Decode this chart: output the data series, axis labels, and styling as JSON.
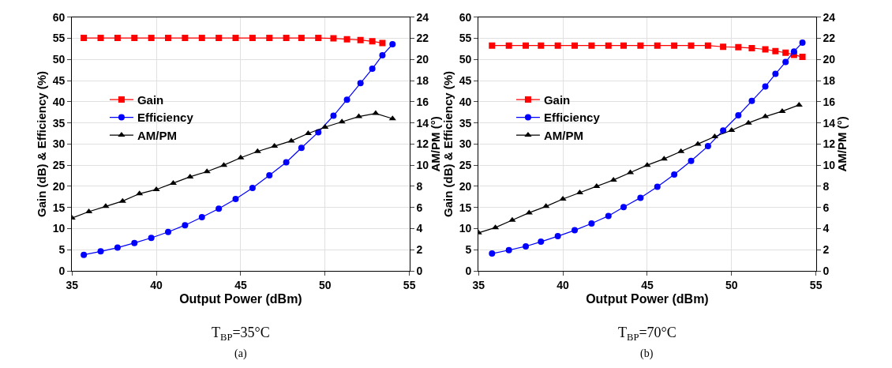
{
  "chart_data": [
    {
      "type": "line",
      "xlabel": "Output Power (dBm)",
      "ylabel": "Gain (dB) & Efficiency (%)",
      "y2label": "AM/PM (°)",
      "xlim": [
        35,
        55
      ],
      "xticks": [
        35,
        40,
        45,
        50,
        55
      ],
      "ylim": [
        0,
        60
      ],
      "yticks": [
        0,
        5,
        10,
        15,
        20,
        25,
        30,
        35,
        40,
        45,
        50,
        55,
        60
      ],
      "y2lim": [
        0,
        24
      ],
      "y2ticks": [
        0,
        2,
        4,
        6,
        8,
        10,
        12,
        14,
        16,
        18,
        20,
        22,
        24
      ],
      "grid": true,
      "legend": "left",
      "annotations": [
        "T$_{BP}$=35°C",
        "(a)"
      ],
      "series": [
        {
          "name": "Gain",
          "color": "#ff0000",
          "marker": "square",
          "x": [
            35.7,
            36.7,
            37.7,
            38.7,
            39.7,
            40.7,
            41.7,
            42.7,
            43.7,
            44.7,
            45.7,
            46.7,
            47.7,
            48.6,
            49.6,
            50.5,
            51.3,
            52.1,
            52.8,
            53.4
          ],
          "values": [
            55.1,
            55.1,
            55.1,
            55.1,
            55.1,
            55.1,
            55.1,
            55.1,
            55.1,
            55.1,
            55.1,
            55.1,
            55.1,
            55.1,
            55.1,
            55.0,
            54.8,
            54.6,
            54.3,
            53.9
          ]
        },
        {
          "name": "Efficiency",
          "color": "#0000ff",
          "marker": "circle",
          "x": [
            35.7,
            36.7,
            37.7,
            38.7,
            39.7,
            40.7,
            41.7,
            42.7,
            43.7,
            44.7,
            45.7,
            46.7,
            47.7,
            48.6,
            49.6,
            50.5,
            51.3,
            52.1,
            52.8,
            53.4,
            54.0
          ],
          "values": [
            3.8,
            4.6,
            5.5,
            6.6,
            7.8,
            9.2,
            10.8,
            12.7,
            14.7,
            17.0,
            19.6,
            22.6,
            25.7,
            29.1,
            32.8,
            36.7,
            40.5,
            44.4,
            47.8,
            51.0,
            53.6
          ]
        },
        {
          "name": "AM/PM",
          "color": "#000000",
          "marker": "triangle",
          "axis": "y2",
          "x": [
            35,
            36,
            37,
            38,
            39,
            40,
            41,
            42,
            43,
            44,
            45,
            46,
            47,
            48,
            49,
            50,
            51,
            52,
            53,
            54
          ],
          "values": [
            5.0,
            5.6,
            6.1,
            6.6,
            7.3,
            7.7,
            8.3,
            8.9,
            9.4,
            10.0,
            10.7,
            11.3,
            11.8,
            12.3,
            13.0,
            13.6,
            14.1,
            14.6,
            14.9,
            14.4
          ]
        }
      ]
    },
    {
      "type": "line",
      "xlabel": "Output Power (dBm)",
      "ylabel": "Gain (dB) & Efficiency (%)",
      "y2label": "AM/PM (°)",
      "xlim": [
        35,
        55
      ],
      "xticks": [
        35,
        40,
        45,
        50,
        55
      ],
      "ylim": [
        0,
        60
      ],
      "yticks": [
        0,
        5,
        10,
        15,
        20,
        25,
        30,
        35,
        40,
        45,
        50,
        55,
        60
      ],
      "y2lim": [
        0,
        24
      ],
      "y2ticks": [
        0,
        2,
        4,
        6,
        8,
        10,
        12,
        14,
        16,
        18,
        20,
        22,
        24
      ],
      "grid": true,
      "legend": "left",
      "annotations": [
        "T$_{BP}$=70°C",
        "(b)"
      ],
      "series": [
        {
          "name": "Gain",
          "color": "#ff0000",
          "marker": "square",
          "x": [
            35.8,
            36.8,
            37.8,
            38.7,
            39.7,
            40.7,
            41.7,
            42.7,
            43.6,
            44.6,
            45.6,
            46.6,
            47.6,
            48.6,
            49.5,
            50.4,
            51.2,
            52.0,
            52.6,
            53.2,
            53.7,
            54.2
          ],
          "values": [
            53.3,
            53.3,
            53.3,
            53.3,
            53.3,
            53.3,
            53.3,
            53.3,
            53.3,
            53.3,
            53.3,
            53.3,
            53.3,
            53.3,
            53.0,
            52.9,
            52.7,
            52.4,
            52.0,
            51.6,
            51.1,
            50.6
          ]
        },
        {
          "name": "Efficiency",
          "color": "#0000ff",
          "marker": "circle",
          "x": [
            35.8,
            36.8,
            37.8,
            38.7,
            39.7,
            40.7,
            41.7,
            42.7,
            43.6,
            44.6,
            45.6,
            46.6,
            47.6,
            48.6,
            49.5,
            50.4,
            51.2,
            52.0,
            52.6,
            53.2,
            53.7,
            54.2
          ],
          "values": [
            4.1,
            4.9,
            5.8,
            6.9,
            8.2,
            9.6,
            11.2,
            13.0,
            15.1,
            17.3,
            19.9,
            22.8,
            26.0,
            29.5,
            33.2,
            36.8,
            40.2,
            43.6,
            46.6,
            49.4,
            51.9,
            54.0
          ]
        },
        {
          "name": "AM/PM",
          "color": "#000000",
          "marker": "triangle",
          "axis": "y2",
          "x": [
            35,
            36,
            37,
            38,
            39,
            40,
            41,
            42,
            43,
            44,
            45,
            46,
            47,
            48,
            49,
            50,
            51,
            52,
            53,
            54
          ],
          "values": [
            3.6,
            4.1,
            4.8,
            5.5,
            6.1,
            6.8,
            7.4,
            8.0,
            8.6,
            9.3,
            10.0,
            10.6,
            11.3,
            12.0,
            12.7,
            13.3,
            14.0,
            14.6,
            15.1,
            15.7
          ]
        }
      ]
    }
  ]
}
